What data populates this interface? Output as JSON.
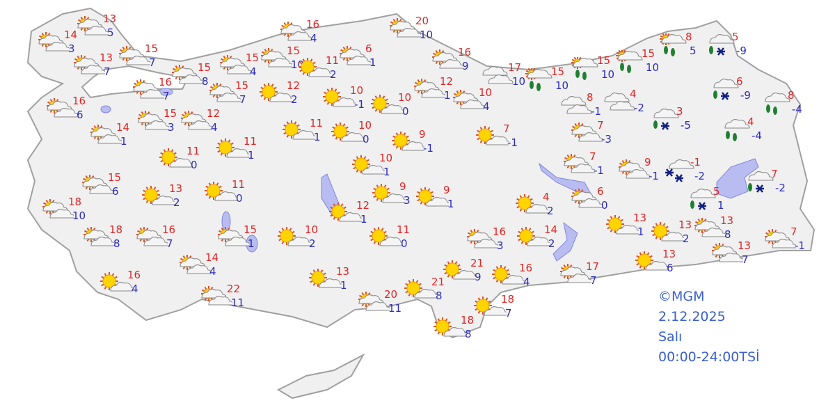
{
  "credit": "©MGM",
  "date": "2.12.2025",
  "weekday": "Salı",
  "period": "00:00-24:00TSİ",
  "colors": {
    "max": "#e02525",
    "min": "#2a2ac0",
    "land": "#f0f0f0",
    "border": "#a0a0a0",
    "water": "#b8bcf0"
  },
  "stations": [
    {
      "w": "partly-cloudy",
      "max": "13",
      "min": "5"
    },
    {
      "w": "partly-cloudy",
      "max": "14",
      "min": "3"
    },
    {
      "w": "partly-cloudy",
      "max": "13",
      "min": "7"
    },
    {
      "w": "partly-cloudy",
      "max": "15",
      "min": "7"
    },
    {
      "w": "partly-cloudy",
      "max": "15",
      "min": "8"
    },
    {
      "w": "partly-cloudy",
      "max": "16",
      "min": "7"
    },
    {
      "w": "partly-cloudy",
      "max": "16",
      "min": "6"
    },
    {
      "w": "partly-cloudy",
      "max": "15",
      "min": "3"
    },
    {
      "w": "partly-cloudy",
      "max": "12",
      "min": "4"
    },
    {
      "w": "partly-cloudy",
      "max": "14",
      "min": "1"
    },
    {
      "w": "partly-cloudy",
      "max": "15",
      "min": "4"
    },
    {
      "w": "partly-cloudy",
      "max": "15",
      "min": "7"
    },
    {
      "w": "partly-cloudy",
      "max": "15",
      "min": "10"
    },
    {
      "w": "partly-cloudy",
      "max": "16",
      "min": "4"
    },
    {
      "w": "sunny",
      "max": "11",
      "min": "2"
    },
    {
      "w": "sunny",
      "max": "12",
      "min": "2"
    },
    {
      "w": "partly-cloudy",
      "max": "6",
      "min": "1"
    },
    {
      "w": "partly-cloudy",
      "max": "20",
      "min": "10"
    },
    {
      "w": "sunny",
      "max": "10",
      "min": "-1"
    },
    {
      "w": "sunny",
      "max": "10",
      "min": "0"
    },
    {
      "w": "partly-cloudy",
      "max": "12",
      "min": "1"
    },
    {
      "w": "partly-cloudy",
      "max": "16",
      "min": "9"
    },
    {
      "w": "partly-cloudy",
      "max": "10",
      "min": "4"
    },
    {
      "w": "cloudy",
      "max": "17",
      "min": "10"
    },
    {
      "w": "rain",
      "max": "15",
      "min": "10"
    },
    {
      "w": "rain",
      "max": "15",
      "min": "10"
    },
    {
      "w": "rain",
      "max": "15",
      "min": "10"
    },
    {
      "w": "rain",
      "max": "8",
      "min": "5"
    },
    {
      "w": "rain-snow",
      "max": "5",
      "min": "-9"
    },
    {
      "w": "rain-snow",
      "max": "6",
      "min": "-9"
    },
    {
      "w": "rain-cloudy",
      "max": "8",
      "min": "-4"
    },
    {
      "w": "rain-cloudy",
      "max": "4",
      "min": "-4"
    },
    {
      "w": "rain-snow",
      "max": "3",
      "min": "-5"
    },
    {
      "w": "cloudy",
      "max": "4",
      "min": "-2"
    },
    {
      "w": "cloudy",
      "max": "8",
      "min": "-1"
    },
    {
      "w": "partly-cloudy",
      "max": "7",
      "min": "-3"
    },
    {
      "w": "partly-cloudy",
      "max": "7",
      "min": "-1"
    },
    {
      "w": "partly-cloudy",
      "max": "9",
      "min": "-1"
    },
    {
      "w": "snow",
      "max": "-1",
      "min": "-2"
    },
    {
      "w": "rain-snow",
      "max": "7",
      "min": "-2"
    },
    {
      "w": "rain-snow",
      "max": "5",
      "min": "1"
    },
    {
      "w": "partly-cloudy",
      "max": "6",
      "min": "0"
    },
    {
      "w": "sunny",
      "max": "4",
      "min": "2"
    },
    {
      "w": "sunny",
      "max": "7",
      "min": "-1"
    },
    {
      "w": "sunny",
      "max": "9",
      "min": "-1"
    },
    {
      "w": "sunny",
      "max": "10",
      "min": "0"
    },
    {
      "w": "sunny",
      "max": "11",
      "min": "1"
    },
    {
      "w": "sunny",
      "max": "10",
      "min": "1"
    },
    {
      "w": "sunny",
      "max": "9",
      "min": "3"
    },
    {
      "w": "sunny",
      "max": "9",
      "min": "1"
    },
    {
      "w": "sunny",
      "max": "12",
      "min": "1"
    },
    {
      "w": "sunny",
      "max": "11",
      "min": "1"
    },
    {
      "w": "sunny",
      "max": "11",
      "min": "0"
    },
    {
      "w": "sunny",
      "max": "11",
      "min": "0"
    },
    {
      "w": "sunny",
      "max": "13",
      "min": "2"
    },
    {
      "w": "partly-cloudy",
      "max": "15",
      "min": "6"
    },
    {
      "w": "partly-cloudy",
      "max": "18",
      "min": "10"
    },
    {
      "w": "partly-cloudy",
      "max": "18",
      "min": "8"
    },
    {
      "w": "partly-cloudy",
      "max": "16",
      "min": "7"
    },
    {
      "w": "partly-cloudy",
      "max": "15",
      "min": "1"
    },
    {
      "w": "sunny",
      "max": "10",
      "min": "2"
    },
    {
      "w": "sunny",
      "max": "11",
      "min": "0"
    },
    {
      "w": "partly-cloudy",
      "max": "16",
      "min": "3"
    },
    {
      "w": "sunny",
      "max": "14",
      "min": "2"
    },
    {
      "w": "sunny",
      "max": "13",
      "min": "1"
    },
    {
      "w": "sunny",
      "max": "13",
      "min": "2"
    },
    {
      "w": "partly-cloudy",
      "max": "13",
      "min": "8"
    },
    {
      "w": "partly-cloudy",
      "max": "7",
      "min": "-1"
    },
    {
      "w": "partly-cloudy",
      "max": "13",
      "min": "7"
    },
    {
      "w": "sunny",
      "max": "13",
      "min": "6"
    },
    {
      "w": "partly-cloudy",
      "max": "17",
      "min": "7"
    },
    {
      "w": "sunny",
      "max": "16",
      "min": "4"
    },
    {
      "w": "sunny",
      "max": "21",
      "min": "9"
    },
    {
      "w": "partly-cloudy",
      "max": "14",
      "min": "4"
    },
    {
      "w": "sunny",
      "max": "16",
      "min": "4"
    },
    {
      "w": "partly-cloudy",
      "max": "22",
      "min": "11"
    },
    {
      "w": "sunny",
      "max": "13",
      "min": "1"
    },
    {
      "w": "partly-cloudy",
      "max": "20",
      "min": "11"
    },
    {
      "w": "sunny",
      "max": "21",
      "min": "8"
    },
    {
      "w": "sunny",
      "max": "18",
      "min": "7"
    },
    {
      "w": "sunny",
      "max": "18",
      "min": "8"
    }
  ]
}
